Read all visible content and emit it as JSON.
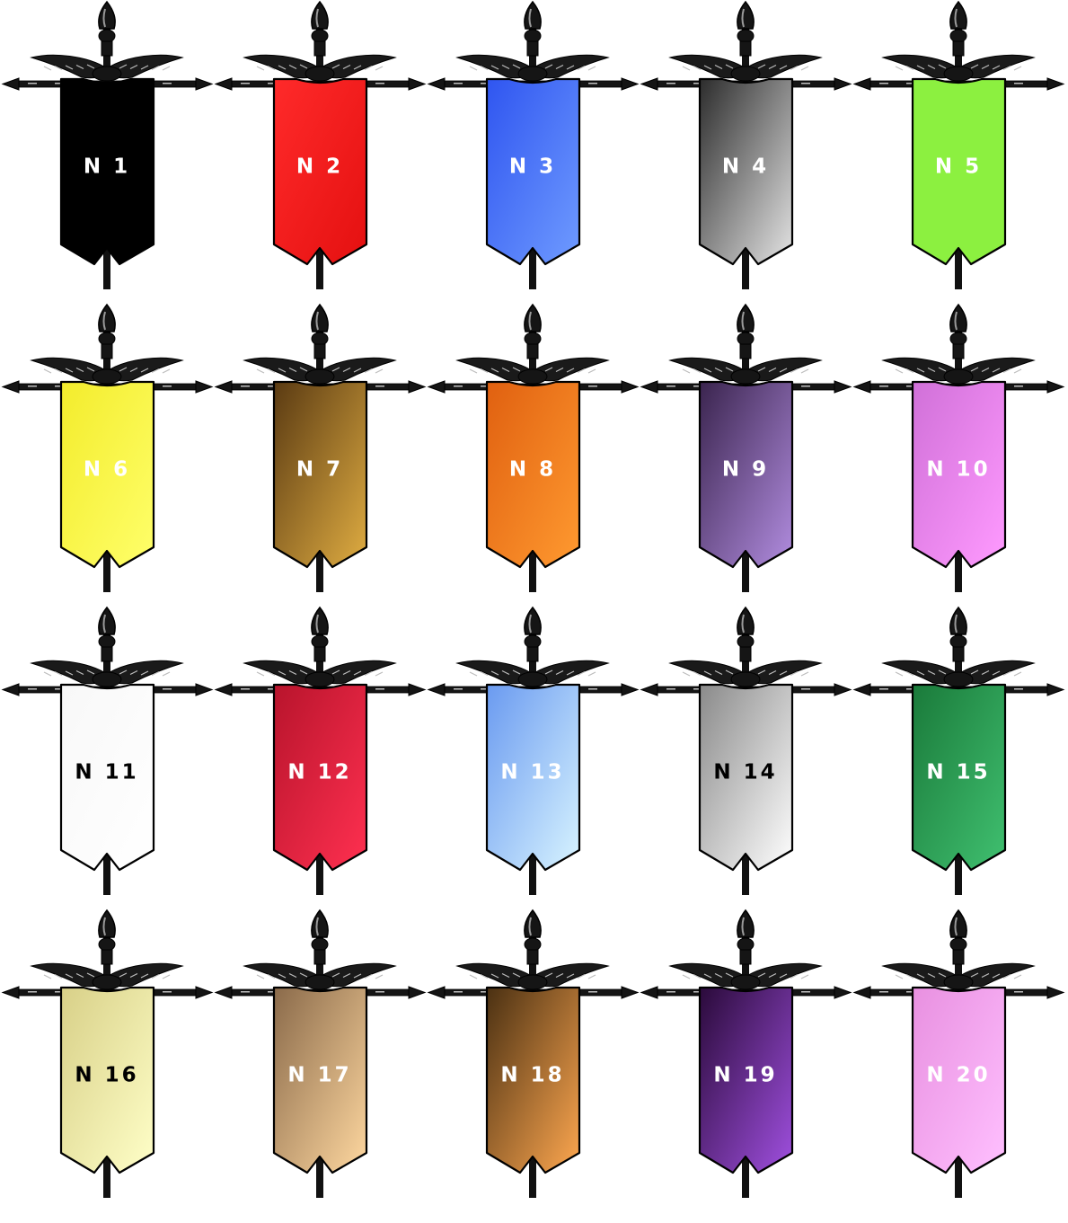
{
  "banners": [
    {
      "label": "N 1",
      "colors": [
        "#000000",
        "#000000"
      ],
      "text_color": "#ffffff"
    },
    {
      "label": "N 2",
      "colors": [
        "#ff2a2a",
        "#e41010"
      ],
      "text_color": "#ffffff"
    },
    {
      "label": "N 3",
      "colors": [
        "#2f55f0",
        "#6f9bff"
      ],
      "text_color": "#ffffff"
    },
    {
      "label": "N 4",
      "colors": [
        "#2c2c2c",
        "#e5e5e5"
      ],
      "text_color": "#ffffff"
    },
    {
      "label": "N 5",
      "colors": [
        "#8cf040",
        "#8cf040"
      ],
      "text_color": "#ffffff"
    },
    {
      "label": "N 6",
      "colors": [
        "#f3ec2c",
        "#ffff6a"
      ],
      "text_color": "#ffffff"
    },
    {
      "label": "N 7",
      "colors": [
        "#5a3a12",
        "#e0ad42"
      ],
      "text_color": "#ffffff"
    },
    {
      "label": "N 8",
      "colors": [
        "#e06010",
        "#ff9a30"
      ],
      "text_color": "#ffffff"
    },
    {
      "label": "N 9",
      "colors": [
        "#3a244e",
        "#b28de0"
      ],
      "text_color": "#ffffff"
    },
    {
      "label": "N 10",
      "colors": [
        "#d070d8",
        "#ff9aff"
      ],
      "text_color": "#ffffff"
    },
    {
      "label": "N 11",
      "colors": [
        "#f8f8f8",
        "#ffffff"
      ],
      "text_color": "#000000"
    },
    {
      "label": "N 12",
      "colors": [
        "#b8142c",
        "#ff3050"
      ],
      "text_color": "#ffffff"
    },
    {
      "label": "N 13",
      "colors": [
        "#6a9af0",
        "#d8f4ff"
      ],
      "text_color": "#ffffff"
    },
    {
      "label": "N 14",
      "colors": [
        "#8a8a8a",
        "#ffffff"
      ],
      "text_color": "#000000"
    },
    {
      "label": "N 15",
      "colors": [
        "#1a7a3a",
        "#40c070"
      ],
      "text_color": "#ffffff"
    },
    {
      "label": "N 16",
      "colors": [
        "#d8d088",
        "#ffffc8"
      ],
      "text_color": "#000000"
    },
    {
      "label": "N 17",
      "colors": [
        "#8a6a4a",
        "#ffd8a0"
      ],
      "text_color": "#ffffff"
    },
    {
      "label": "N 18",
      "colors": [
        "#4a3012",
        "#ffa850"
      ],
      "text_color": "#ffffff"
    },
    {
      "label": "N 19",
      "colors": [
        "#2a0a3a",
        "#a050e0"
      ],
      "text_color": "#ffffff"
    },
    {
      "label": "N 20",
      "colors": [
        "#e890e0",
        "#ffc0ff"
      ],
      "text_color": "#ffffff"
    }
  ]
}
